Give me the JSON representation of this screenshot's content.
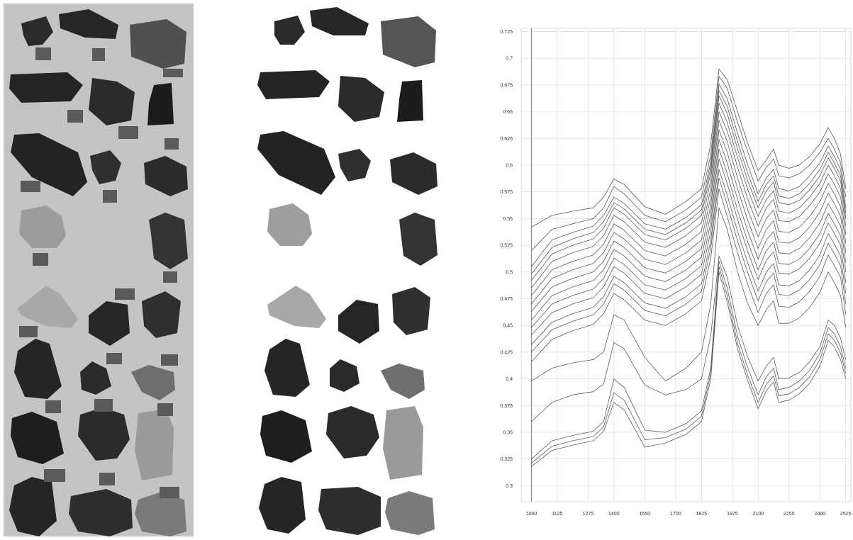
{
  "panels": {
    "left": {
      "kind": "grayscale photograph of rock fragments with gray calibration squares"
    },
    "middle": {
      "kind": "segmented rock fragments on white background"
    }
  },
  "colors": {
    "rock_dark": "#2b2b2b",
    "rock_mid": "#4a4a4a",
    "rock_light": "#b0b0b0",
    "calibration_square": "#5a5a5a",
    "spectrum_line": "#5a5a5a",
    "grid": "#d8d8d8",
    "axis": "#888888"
  },
  "chart_data": {
    "type": "line",
    "title": "",
    "xlabel": "",
    "ylabel": "",
    "xlim": [
      950,
      2550
    ],
    "ylim": [
      0.285,
      0.728
    ],
    "xticks": [
      "1000",
      "1125",
      "1275",
      "1400",
      "1550",
      "1700",
      "1825",
      "1975",
      "2100",
      "2250",
      "2400",
      "2525"
    ],
    "yticks": [
      "0.725",
      "0.7",
      "0.675",
      "0.65",
      "0.625",
      "0.6",
      "0.575",
      "0.55",
      "0.525",
      "0.5",
      "0.475",
      "0.45",
      "0.425",
      "0.4",
      "0.375",
      "0.35",
      "0.325",
      "0.3"
    ],
    "grid": true,
    "x": [
      1000,
      1100,
      1200,
      1300,
      1350,
      1400,
      1450,
      1550,
      1650,
      1750,
      1825,
      1870,
      1910,
      1950,
      2000,
      2050,
      2100,
      2140,
      2175,
      2200,
      2250,
      2300,
      2350,
      2400,
      2440,
      2470,
      2500,
      2525
    ],
    "series": [
      {
        "values": [
          0.542,
          0.553,
          0.557,
          0.56,
          0.57,
          0.587,
          0.582,
          0.561,
          0.554,
          0.566,
          0.578,
          0.62,
          0.69,
          0.68,
          0.65,
          0.62,
          0.595,
          0.605,
          0.615,
          0.6,
          0.597,
          0.6,
          0.608,
          0.62,
          0.635,
          0.625,
          0.61,
          0.578
        ]
      },
      {
        "values": [
          0.52,
          0.54,
          0.545,
          0.55,
          0.56,
          0.58,
          0.573,
          0.553,
          0.547,
          0.558,
          0.57,
          0.61,
          0.683,
          0.672,
          0.64,
          0.612,
          0.585,
          0.598,
          0.606,
          0.59,
          0.588,
          0.592,
          0.6,
          0.612,
          0.625,
          0.615,
          0.602,
          0.57
        ]
      },
      {
        "values": [
          0.505,
          0.53,
          0.537,
          0.543,
          0.553,
          0.57,
          0.564,
          0.545,
          0.54,
          0.551,
          0.563,
          0.603,
          0.676,
          0.662,
          0.63,
          0.6,
          0.573,
          0.588,
          0.596,
          0.578,
          0.576,
          0.58,
          0.59,
          0.602,
          0.618,
          0.608,
          0.596,
          0.56
        ]
      },
      {
        "values": [
          0.498,
          0.523,
          0.531,
          0.537,
          0.547,
          0.565,
          0.559,
          0.54,
          0.535,
          0.546,
          0.558,
          0.598,
          0.67,
          0.655,
          0.622,
          0.592,
          0.566,
          0.582,
          0.59,
          0.571,
          0.569,
          0.573,
          0.583,
          0.596,
          0.612,
          0.602,
          0.59,
          0.555
        ]
      },
      {
        "values": [
          0.492,
          0.517,
          0.525,
          0.531,
          0.541,
          0.56,
          0.554,
          0.535,
          0.53,
          0.541,
          0.553,
          0.593,
          0.665,
          0.648,
          0.615,
          0.585,
          0.56,
          0.576,
          0.584,
          0.565,
          0.563,
          0.567,
          0.577,
          0.59,
          0.607,
          0.597,
          0.585,
          0.55
        ]
      },
      {
        "values": [
          0.485,
          0.51,
          0.518,
          0.524,
          0.534,
          0.553,
          0.547,
          0.528,
          0.523,
          0.534,
          0.546,
          0.586,
          0.658,
          0.64,
          0.607,
          0.577,
          0.552,
          0.568,
          0.576,
          0.557,
          0.555,
          0.56,
          0.57,
          0.583,
          0.6,
          0.59,
          0.578,
          0.543
        ]
      },
      {
        "values": [
          0.478,
          0.502,
          0.51,
          0.516,
          0.526,
          0.545,
          0.539,
          0.52,
          0.515,
          0.526,
          0.538,
          0.578,
          0.65,
          0.632,
          0.598,
          0.568,
          0.543,
          0.56,
          0.568,
          0.548,
          0.547,
          0.552,
          0.562,
          0.575,
          0.592,
          0.582,
          0.57,
          0.535
        ]
      },
      {
        "values": [
          0.47,
          0.494,
          0.502,
          0.508,
          0.518,
          0.537,
          0.531,
          0.512,
          0.507,
          0.518,
          0.53,
          0.57,
          0.642,
          0.622,
          0.588,
          0.558,
          0.533,
          0.55,
          0.558,
          0.538,
          0.537,
          0.542,
          0.552,
          0.566,
          0.583,
          0.573,
          0.561,
          0.527
        ]
      },
      {
        "values": [
          0.463,
          0.486,
          0.494,
          0.5,
          0.51,
          0.529,
          0.523,
          0.504,
          0.499,
          0.51,
          0.522,
          0.562,
          0.633,
          0.612,
          0.578,
          0.548,
          0.522,
          0.54,
          0.548,
          0.528,
          0.527,
          0.532,
          0.542,
          0.556,
          0.574,
          0.564,
          0.552,
          0.518
        ]
      },
      {
        "values": [
          0.455,
          0.478,
          0.486,
          0.492,
          0.502,
          0.521,
          0.515,
          0.496,
          0.491,
          0.502,
          0.514,
          0.554,
          0.624,
          0.602,
          0.568,
          0.538,
          0.512,
          0.53,
          0.538,
          0.518,
          0.517,
          0.522,
          0.532,
          0.546,
          0.564,
          0.554,
          0.543,
          0.509
        ]
      },
      {
        "values": [
          0.448,
          0.47,
          0.478,
          0.484,
          0.494,
          0.513,
          0.507,
          0.488,
          0.483,
          0.494,
          0.506,
          0.546,
          0.615,
          0.592,
          0.558,
          0.528,
          0.502,
          0.52,
          0.528,
          0.508,
          0.507,
          0.512,
          0.522,
          0.536,
          0.555,
          0.545,
          0.534,
          0.5
        ]
      },
      {
        "values": [
          0.441,
          0.462,
          0.47,
          0.476,
          0.486,
          0.505,
          0.499,
          0.48,
          0.475,
          0.486,
          0.498,
          0.538,
          0.606,
          0.583,
          0.549,
          0.519,
          0.493,
          0.511,
          0.519,
          0.499,
          0.498,
          0.503,
          0.513,
          0.527,
          0.546,
          0.536,
          0.525,
          0.49
        ]
      },
      {
        "values": [
          0.432,
          0.453,
          0.461,
          0.467,
          0.477,
          0.496,
          0.49,
          0.471,
          0.466,
          0.477,
          0.489,
          0.529,
          0.596,
          0.572,
          0.538,
          0.508,
          0.482,
          0.5,
          0.508,
          0.488,
          0.487,
          0.492,
          0.502,
          0.516,
          0.536,
          0.526,
          0.515,
          0.48
        ]
      },
      {
        "values": [
          0.425,
          0.446,
          0.454,
          0.46,
          0.47,
          0.489,
          0.483,
          0.464,
          0.459,
          0.47,
          0.482,
          0.522,
          0.588,
          0.563,
          0.529,
          0.499,
          0.473,
          0.491,
          0.499,
          0.479,
          0.478,
          0.483,
          0.493,
          0.507,
          0.527,
          0.517,
          0.506,
          0.47
        ]
      },
      {
        "values": [
          0.416,
          0.437,
          0.445,
          0.451,
          0.461,
          0.48,
          0.474,
          0.455,
          0.45,
          0.461,
          0.473,
          0.513,
          0.578,
          0.552,
          0.518,
          0.488,
          0.462,
          0.48,
          0.488,
          0.468,
          0.467,
          0.472,
          0.482,
          0.496,
          0.516,
          0.506,
          0.495,
          0.46
        ]
      },
      {
        "values": [
          0.398,
          0.41,
          0.415,
          0.418,
          0.425,
          0.46,
          0.455,
          0.42,
          0.398,
          0.41,
          0.425,
          0.47,
          0.56,
          0.54,
          0.5,
          0.47,
          0.45,
          0.465,
          0.473,
          0.452,
          0.452,
          0.457,
          0.467,
          0.481,
          0.5,
          0.49,
          0.478,
          0.448
        ]
      },
      {
        "values": [
          0.36,
          0.378,
          0.385,
          0.388,
          0.395,
          0.434,
          0.428,
          0.394,
          0.385,
          0.39,
          0.4,
          0.44,
          0.515,
          0.495,
          0.45,
          0.42,
          0.398,
          0.412,
          0.42,
          0.4,
          0.401,
          0.406,
          0.416,
          0.43,
          0.455,
          0.45,
          0.438,
          0.418
        ]
      },
      {
        "values": [
          0.325,
          0.342,
          0.347,
          0.351,
          0.36,
          0.4,
          0.392,
          0.352,
          0.35,
          0.358,
          0.37,
          0.41,
          0.51,
          0.485,
          0.44,
          0.41,
          0.385,
          0.402,
          0.41,
          0.39,
          0.392,
          0.398,
          0.408,
          0.424,
          0.448,
          0.442,
          0.43,
          0.41
        ]
      },
      {
        "values": [
          0.321,
          0.337,
          0.342,
          0.346,
          0.355,
          0.387,
          0.38,
          0.343,
          0.345,
          0.353,
          0.365,
          0.405,
          0.505,
          0.478,
          0.433,
          0.403,
          0.378,
          0.395,
          0.403,
          0.384,
          0.386,
          0.392,
          0.402,
          0.418,
          0.442,
          0.436,
          0.424,
          0.405
        ]
      },
      {
        "values": [
          0.318,
          0.333,
          0.338,
          0.342,
          0.351,
          0.378,
          0.371,
          0.336,
          0.34,
          0.348,
          0.36,
          0.4,
          0.5,
          0.472,
          0.428,
          0.398,
          0.372,
          0.389,
          0.397,
          0.378,
          0.38,
          0.386,
          0.396,
          0.412,
          0.436,
          0.43,
          0.418,
          0.4
        ]
      }
    ]
  }
}
